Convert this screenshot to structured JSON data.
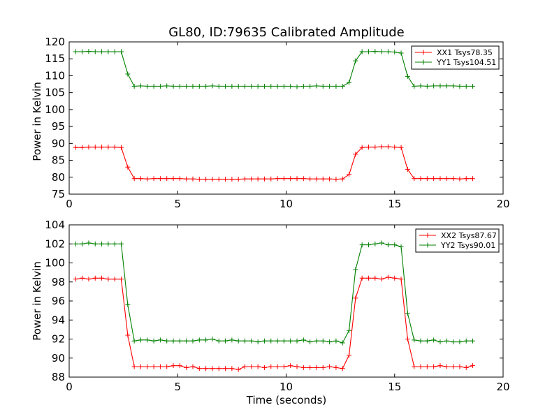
{
  "chart_data": [
    {
      "type": "line",
      "title": "GL80, ID:79635 Calibrated Amplitude",
      "xlabel": "",
      "ylabel": "Power in Kelvin",
      "xlim": [
        0,
        20
      ],
      "ylim": [
        75,
        120
      ],
      "xticks": [
        0,
        5,
        10,
        15,
        20
      ],
      "yticks": [
        75,
        80,
        85,
        90,
        95,
        100,
        105,
        110,
        115,
        120
      ],
      "legend_position": "top-right",
      "x": [
        0.3,
        0.6,
        0.9,
        1.2,
        1.5,
        1.8,
        2.1,
        2.4,
        2.7,
        3.0,
        3.3,
        3.6,
        3.9,
        4.2,
        4.5,
        4.8,
        5.1,
        5.4,
        5.7,
        6.0,
        6.3,
        6.6,
        6.9,
        7.2,
        7.5,
        7.8,
        8.1,
        8.4,
        8.7,
        9.0,
        9.3,
        9.6,
        9.9,
        10.2,
        10.5,
        10.8,
        11.1,
        11.4,
        11.7,
        12.0,
        12.3,
        12.6,
        12.9,
        13.2,
        13.5,
        13.8,
        14.1,
        14.4,
        14.7,
        15.0,
        15.3,
        15.6,
        15.9,
        16.2,
        16.5,
        16.8,
        17.1,
        17.4,
        17.7,
        18.0,
        18.3,
        18.6
      ],
      "series": [
        {
          "name": "XX1 Tsys78.35",
          "color": "#ff0000",
          "values": [
            88.8,
            88.8,
            88.9,
            88.9,
            88.9,
            88.9,
            88.9,
            88.8,
            83.0,
            79.6,
            79.6,
            79.5,
            79.6,
            79.6,
            79.6,
            79.6,
            79.6,
            79.5,
            79.5,
            79.4,
            79.4,
            79.4,
            79.4,
            79.4,
            79.4,
            79.4,
            79.5,
            79.5,
            79.5,
            79.5,
            79.5,
            79.6,
            79.6,
            79.6,
            79.6,
            79.6,
            79.5,
            79.5,
            79.5,
            79.5,
            79.4,
            79.5,
            80.8,
            86.8,
            88.8,
            88.9,
            88.9,
            89.0,
            89.0,
            88.9,
            88.8,
            82.3,
            79.6,
            79.6,
            79.6,
            79.6,
            79.6,
            79.6,
            79.6,
            79.5,
            79.6,
            79.6
          ]
        },
        {
          "name": "YY1 Tsys104.51",
          "color": "#008000",
          "values": [
            117.1,
            117.1,
            117.2,
            117.1,
            117.1,
            117.1,
            117.1,
            117.1,
            110.5,
            106.9,
            107.0,
            106.9,
            106.9,
            106.9,
            107.0,
            106.9,
            106.9,
            106.9,
            106.9,
            106.9,
            106.9,
            107.0,
            106.9,
            106.9,
            106.9,
            106.9,
            106.9,
            106.9,
            106.9,
            106.9,
            106.9,
            106.9,
            106.9,
            106.9,
            106.7,
            106.9,
            106.9,
            107.0,
            106.9,
            106.9,
            106.9,
            106.9,
            108.0,
            114.4,
            117.1,
            117.1,
            117.2,
            117.1,
            117.1,
            117.0,
            116.7,
            109.8,
            106.9,
            107.0,
            106.9,
            107.0,
            107.0,
            107.0,
            107.0,
            106.9,
            106.9,
            106.9
          ]
        }
      ]
    },
    {
      "type": "line",
      "title": "",
      "xlabel": "Time (seconds)",
      "ylabel": "Power in Kelvin",
      "xlim": [
        0,
        20
      ],
      "ylim": [
        88,
        104
      ],
      "xticks": [
        0,
        5,
        10,
        15,
        20
      ],
      "yticks": [
        88,
        90,
        92,
        94,
        96,
        98,
        100,
        102,
        104
      ],
      "legend_position": "top-right",
      "x": [
        0.3,
        0.6,
        0.9,
        1.2,
        1.5,
        1.8,
        2.1,
        2.4,
        2.7,
        3.0,
        3.3,
        3.6,
        3.9,
        4.2,
        4.5,
        4.8,
        5.1,
        5.4,
        5.7,
        6.0,
        6.3,
        6.6,
        6.9,
        7.2,
        7.5,
        7.8,
        8.1,
        8.4,
        8.7,
        9.0,
        9.3,
        9.6,
        9.9,
        10.2,
        10.5,
        10.8,
        11.1,
        11.4,
        11.7,
        12.0,
        12.3,
        12.6,
        12.9,
        13.2,
        13.5,
        13.8,
        14.1,
        14.4,
        14.7,
        15.0,
        15.3,
        15.6,
        15.9,
        16.2,
        16.5,
        16.8,
        17.1,
        17.4,
        17.7,
        18.0,
        18.3,
        18.6
      ],
      "series": [
        {
          "name": "XX2 Tsys87.67",
          "color": "#ff0000",
          "values": [
            98.3,
            98.4,
            98.3,
            98.4,
            98.4,
            98.3,
            98.3,
            98.3,
            92.4,
            89.1,
            89.1,
            89.1,
            89.1,
            89.1,
            89.1,
            89.2,
            89.2,
            89.0,
            89.1,
            88.9,
            88.9,
            88.9,
            88.9,
            88.9,
            88.9,
            88.8,
            89.1,
            89.1,
            89.1,
            89.0,
            89.1,
            89.1,
            89.1,
            89.2,
            89.1,
            89.0,
            89.0,
            89.0,
            89.0,
            89.1,
            89.0,
            88.9,
            90.3,
            96.3,
            98.4,
            98.4,
            98.4,
            98.3,
            98.5,
            98.4,
            98.3,
            92.0,
            89.1,
            89.1,
            89.1,
            89.1,
            89.2,
            89.1,
            89.1,
            89.1,
            89.0,
            89.2
          ]
        },
        {
          "name": "YY2 Tsys90.01",
          "color": "#008000",
          "values": [
            102.0,
            102.0,
            102.1,
            102.0,
            102.0,
            102.0,
            102.0,
            102.0,
            95.6,
            91.8,
            91.9,
            91.9,
            91.8,
            91.9,
            91.8,
            91.8,
            91.8,
            91.8,
            91.8,
            91.9,
            91.9,
            92.0,
            91.8,
            91.8,
            91.9,
            91.8,
            91.8,
            91.8,
            91.7,
            91.8,
            91.8,
            91.8,
            91.8,
            91.8,
            91.8,
            91.9,
            91.7,
            91.8,
            91.8,
            91.7,
            91.8,
            91.6,
            92.9,
            99.3,
            101.9,
            101.9,
            102.0,
            102.1,
            101.9,
            101.9,
            101.7,
            94.7,
            91.9,
            91.8,
            91.8,
            91.9,
            91.7,
            91.8,
            91.7,
            91.7,
            91.8,
            91.8
          ]
        }
      ]
    }
  ]
}
